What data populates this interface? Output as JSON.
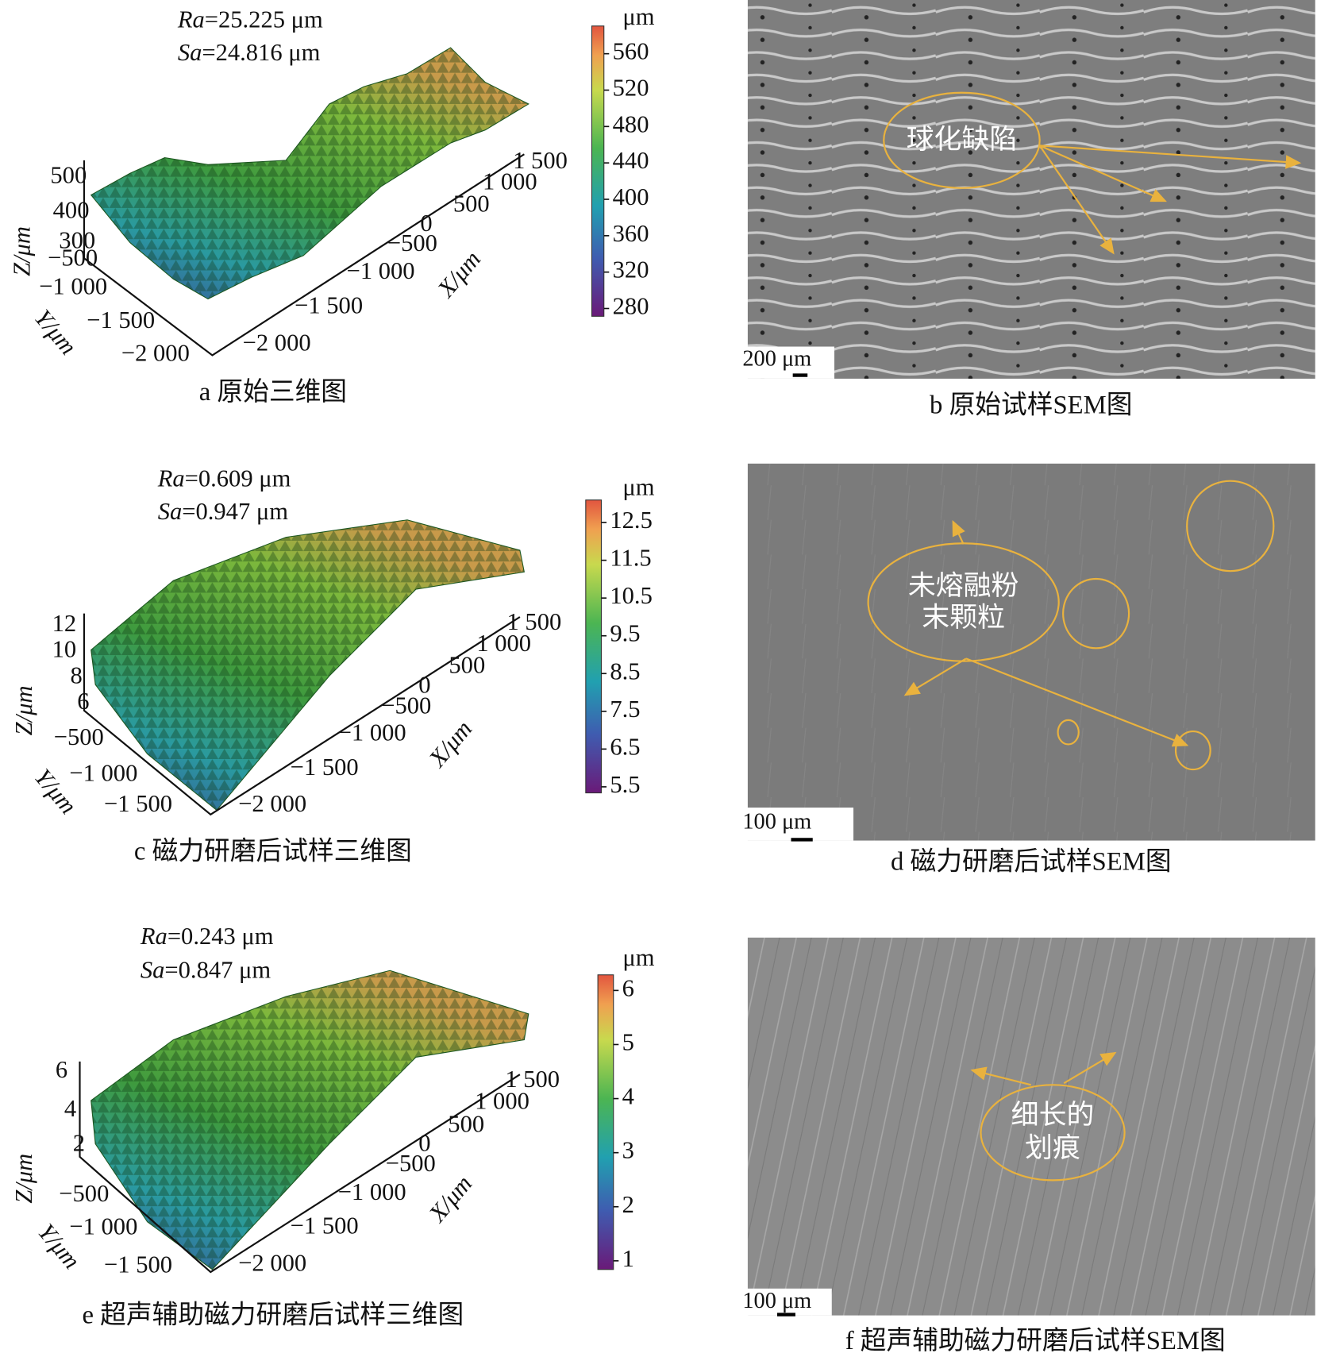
{
  "figure": {
    "profiles": [
      {
        "stats": [
          {
            "symbol": "Ra",
            "value": "=25.225 μm"
          },
          {
            "symbol": "Sa",
            "value": "=24.816 μm"
          }
        ],
        "z_ticks": [
          500,
          400,
          300
        ],
        "y_ticks": [
          "−500",
          "−1 000",
          "−1 500",
          "−2 000"
        ],
        "x_ticks": [
          "1 500",
          "1 000",
          "500",
          "0",
          "−500",
          "−1 000",
          "−1 500",
          "−2 000"
        ],
        "axis_labels": {
          "z": "Z/μm",
          "y": "Y/μm",
          "x": "X/μm"
        },
        "colorbar": {
          "unit": "μm",
          "ticks": [
            560,
            520,
            480,
            440,
            400,
            360,
            320,
            280
          ]
        },
        "caption": "a 原始三维图"
      },
      {
        "stats": [
          {
            "symbol": "Ra",
            "value": "=0.609 μm"
          },
          {
            "symbol": "Sa",
            "value": "=0.947 μm"
          }
        ],
        "z_ticks": [
          12,
          10,
          8,
          6
        ],
        "y_ticks": [
          "−500",
          "−1 000",
          "−1 500"
        ],
        "x_ticks": [
          "1 500",
          "1 000",
          "500",
          "0",
          "−500",
          "−1 000",
          "−1 500",
          "−2 000"
        ],
        "axis_labels": {
          "z": "Z/μm",
          "y": "Y/μm",
          "x": "X/μm"
        },
        "colorbar": {
          "unit": "μm",
          "ticks": [
            12.5,
            11.5,
            10.5,
            9.5,
            8.5,
            7.5,
            6.5,
            5.5
          ]
        },
        "caption": "c 磁力研磨后试样三维图"
      },
      {
        "stats": [
          {
            "symbol": "Ra",
            "value": "=0.243 μm"
          },
          {
            "symbol": "Sa",
            "value": "=0.847 μm"
          }
        ],
        "z_ticks": [
          6,
          4,
          2
        ],
        "y_ticks": [
          "−500",
          "−1 000",
          "−1 500"
        ],
        "x_ticks": [
          "1 500",
          "1 000",
          "500",
          "0",
          "−500",
          "−1 000",
          "−1 500",
          "−2 000"
        ],
        "axis_labels": {
          "z": "Z/μm",
          "y": "Y/μm",
          "x": "X/μm"
        },
        "colorbar": {
          "unit": "μm",
          "ticks": [
            6,
            5,
            4,
            3,
            2,
            1
          ]
        },
        "caption": "e 超声辅助磁力研磨后试样三维图"
      }
    ],
    "sem_images": [
      {
        "annotation": [
          "球化缺陷"
        ],
        "scale_bar": "200 μm",
        "caption": "b 原始试样SEM图"
      },
      {
        "annotation": [
          "未熔融粉",
          "末颗粒"
        ],
        "scale_bar": "100 μm",
        "caption": "d 磁力研磨后试样SEM图"
      },
      {
        "annotation": [
          "细长的",
          "划痕"
        ],
        "scale_bar": "100 μm",
        "caption": "f 超声辅助磁力研磨后试样SEM图"
      }
    ]
  }
}
